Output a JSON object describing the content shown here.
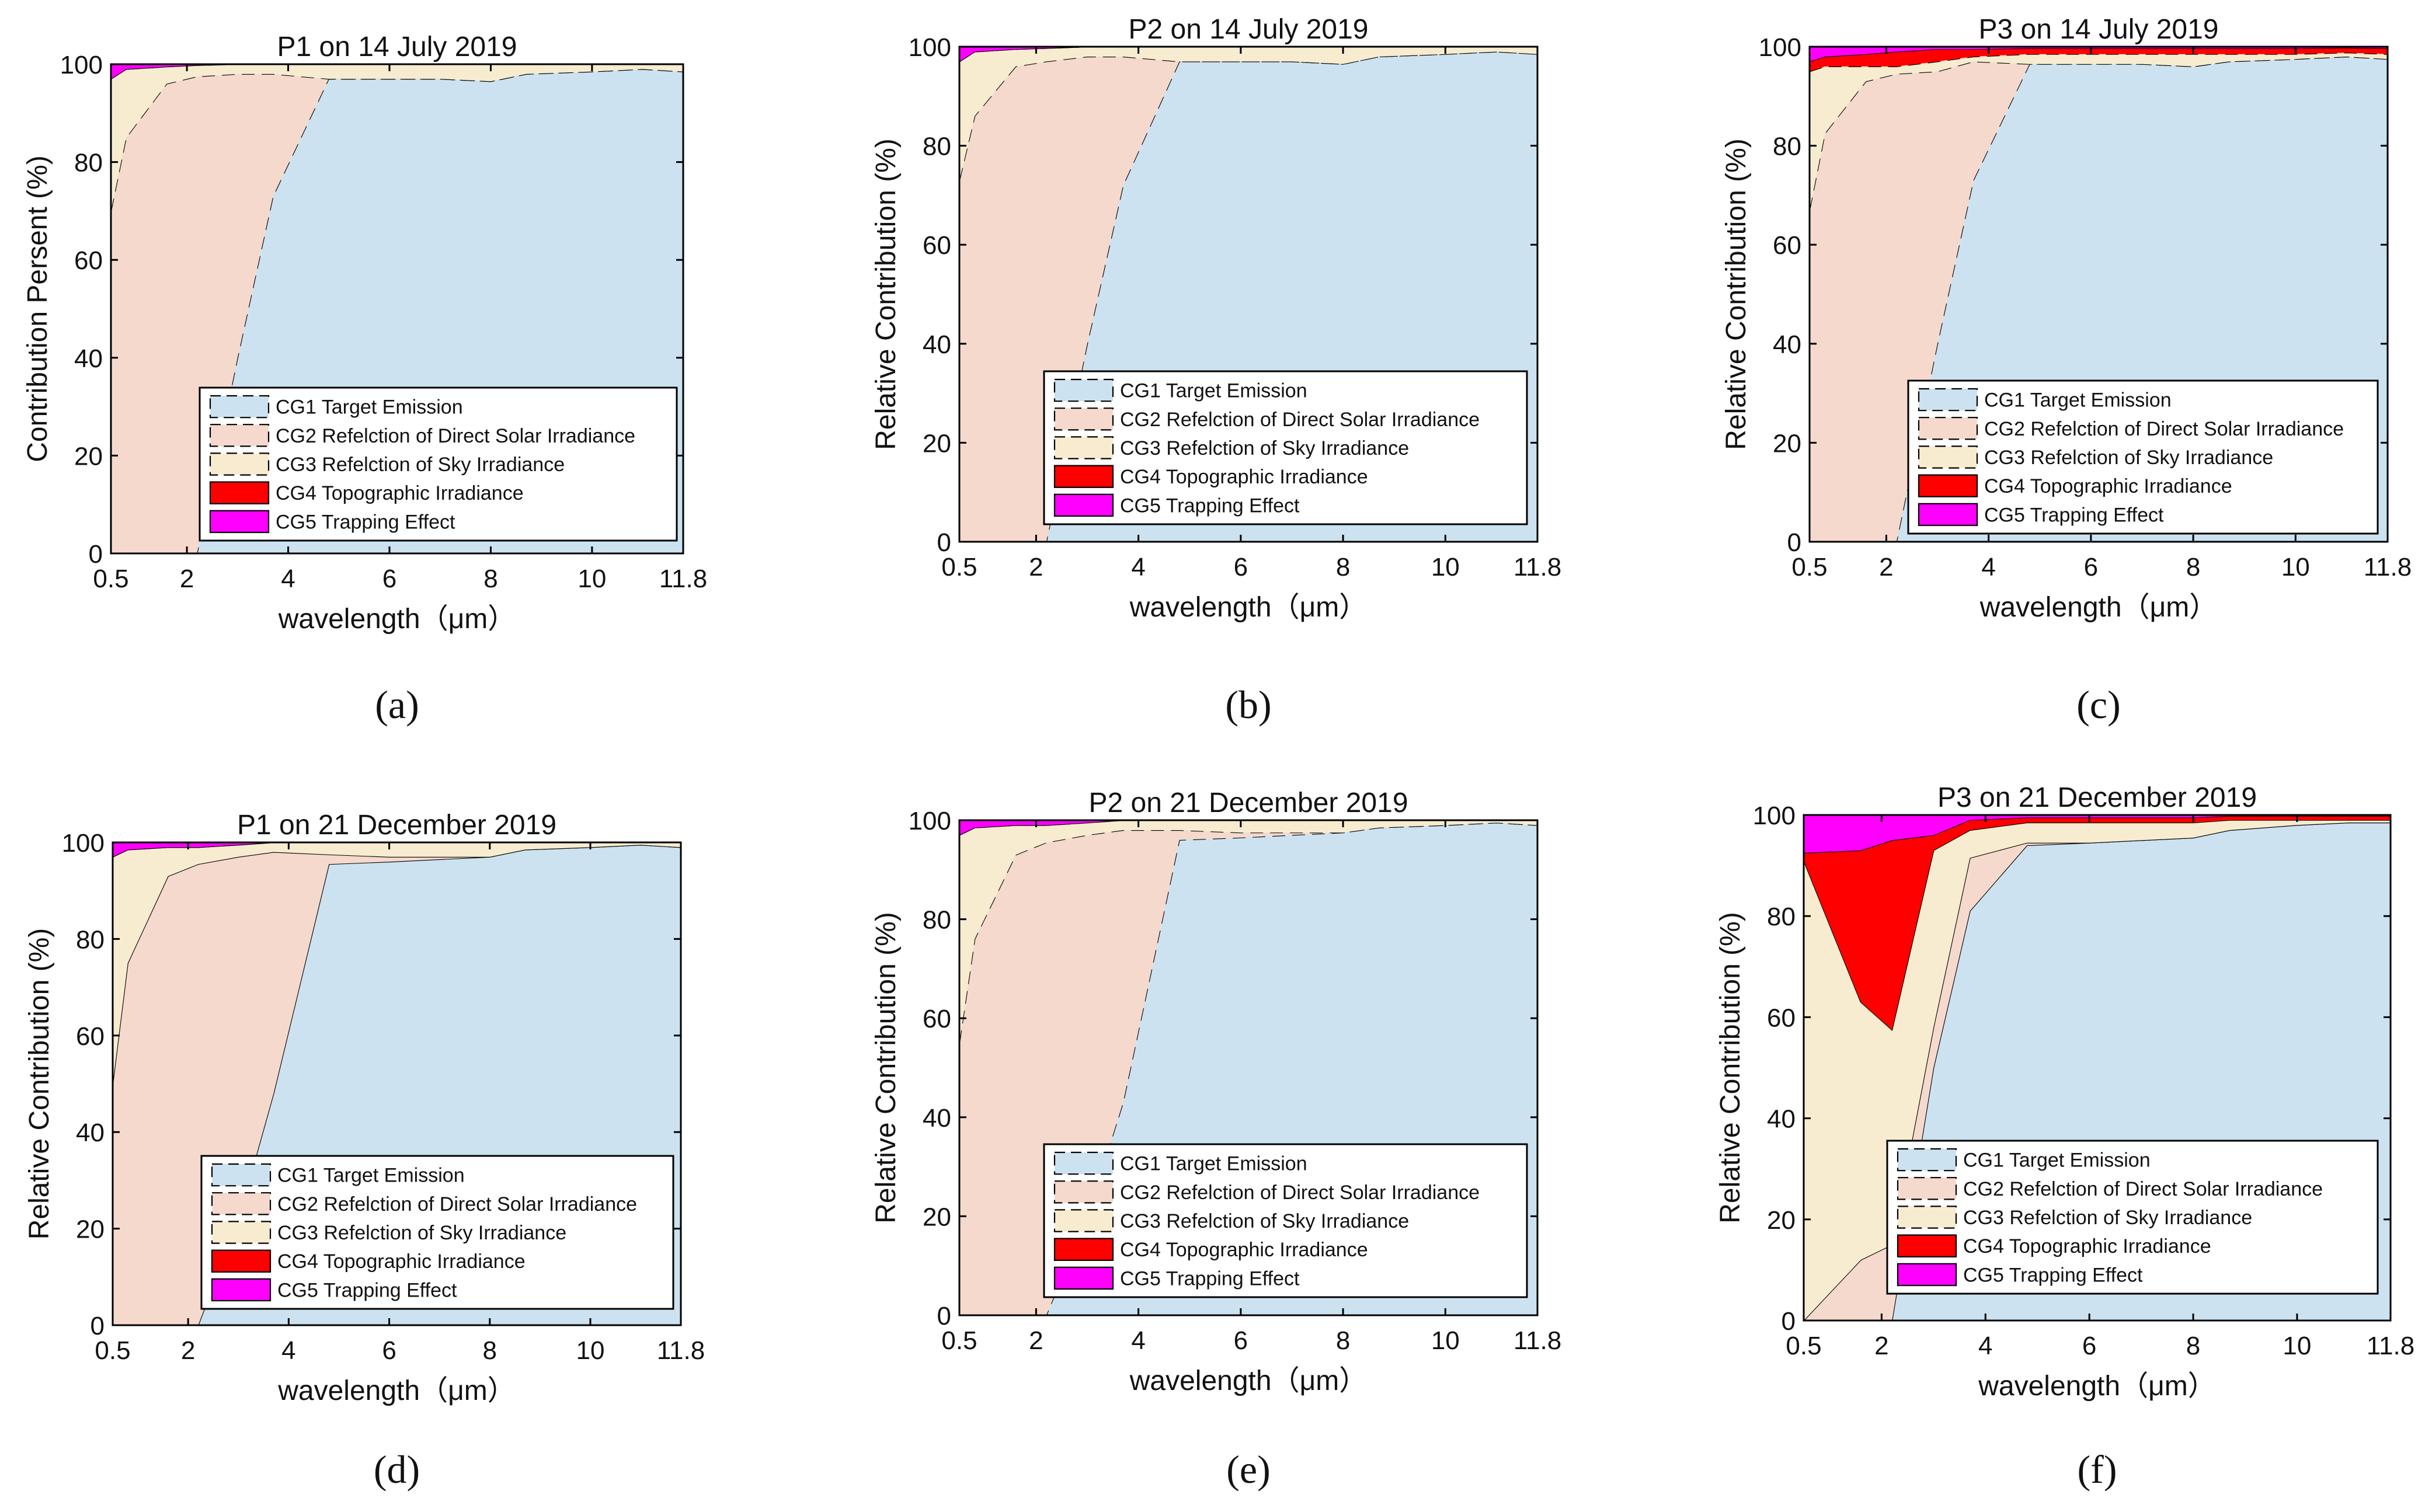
{
  "figure": {
    "legend_entries": [
      "CG1 Target Emission",
      "CG2 Refelction of Direct Solar Irradiance",
      "CG3 Refelction of Sky Irradiance",
      "CG4 Topographic Irradiance",
      "CG5 Trapping Effect"
    ],
    "colors": {
      "CG1": "#cce2f0",
      "CG2": "#f5d9cd",
      "CG3": "#f7eccf",
      "CG4": "#ff0000",
      "CG5": "#ff00ff"
    }
  },
  "chart_data": [
    {
      "type": "area",
      "stacked": true,
      "panel": "(a)",
      "title": "P1 on 14 July 2019",
      "xlabel": "wavelength（μm）",
      "ylabel": "Contribution Persent (%)",
      "xlim": [
        0.5,
        11.8
      ],
      "ylim": [
        0,
        100
      ],
      "xticks": [
        "0.5",
        "2",
        "4",
        "6",
        "8",
        "10",
        "11.8"
      ],
      "yticks": [
        "0",
        "20",
        "40",
        "60",
        "80",
        "100"
      ],
      "legend_position": "bottom-right",
      "x": [
        0.5,
        0.8,
        1.6,
        2.2,
        3.0,
        3.7,
        4.8,
        6.0,
        7.0,
        8.0,
        8.7,
        10.0,
        11.0,
        11.8
      ],
      "series": [
        {
          "name": "CG1 Target Emission",
          "values": [
            0,
            0,
            0,
            0,
            40,
            73,
            97,
            97,
            97,
            96.5,
            98,
            98.5,
            99,
            98.5
          ]
        },
        {
          "name": "CG2 Refelction of Direct Solar Irradiance",
          "values": [
            70,
            85,
            96,
            97.5,
            58,
            25,
            0,
            0,
            0,
            0,
            0,
            0,
            0,
            0
          ]
        },
        {
          "name": "CG3 Refelction of Sky Irradiance",
          "values": [
            27,
            14,
            3.5,
            2.3,
            2,
            2,
            3,
            3,
            3,
            3.5,
            2,
            1.5,
            1,
            1.5
          ]
        },
        {
          "name": "CG4 Topographic Irradiance",
          "values": [
            0,
            0,
            0,
            0,
            0,
            0,
            0,
            0,
            0,
            0,
            0,
            0,
            0,
            0
          ]
        },
        {
          "name": "CG5 Trapping Effect",
          "values": [
            3,
            1,
            0.5,
            0.2,
            0,
            0,
            0,
            0,
            0,
            0,
            0,
            0,
            0,
            0
          ]
        }
      ]
    },
    {
      "type": "area",
      "stacked": true,
      "panel": "(b)",
      "title": "P2 on 14 July 2019",
      "xlabel": "wavelength（μm）",
      "ylabel": "Relative Contribution (%)",
      "xlim": [
        0.5,
        11.8
      ],
      "ylim": [
        0,
        100
      ],
      "xticks": [
        "0.5",
        "2",
        "4",
        "6",
        "8",
        "10",
        "11.8"
      ],
      "yticks": [
        "0",
        "20",
        "40",
        "60",
        "80",
        "100"
      ],
      "legend_position": "bottom-right",
      "x": [
        0.5,
        0.8,
        1.6,
        2.2,
        3.0,
        3.7,
        4.8,
        6.0,
        7.0,
        8.0,
        8.7,
        10.0,
        11.0,
        11.8
      ],
      "series": [
        {
          "name": "CG1 Target Emission",
          "values": [
            0,
            0,
            0,
            0,
            40,
            72,
            97,
            97,
            97,
            96.5,
            98,
            98.5,
            99,
            98.5
          ]
        },
        {
          "name": "CG2 Refelction of Direct Solar Irradiance",
          "values": [
            73,
            86,
            96,
            97,
            58,
            26,
            0,
            0,
            0,
            0,
            0,
            0,
            0,
            0
          ]
        },
        {
          "name": "CG3 Refelction of Sky Irradiance",
          "values": [
            24,
            13,
            3.5,
            2.7,
            2,
            2,
            3,
            3,
            3,
            3.5,
            2,
            1.5,
            1,
            1.5
          ]
        },
        {
          "name": "CG4 Topographic Irradiance",
          "values": [
            0,
            0,
            0,
            0,
            0,
            0,
            0,
            0,
            0,
            0,
            0,
            0,
            0,
            0
          ]
        },
        {
          "name": "CG5 Trapping Effect",
          "values": [
            3,
            1,
            0.5,
            0.3,
            0,
            0,
            0,
            0,
            0,
            0,
            0,
            0,
            0,
            0
          ]
        }
      ]
    },
    {
      "type": "area",
      "stacked": true,
      "panel": "(c)",
      "title": "P3 on 14 July 2019",
      "xlabel": "wavelength（μm）",
      "ylabel": "Relative Contribution (%)",
      "xlim": [
        0.5,
        11.8
      ],
      "ylim": [
        0,
        100
      ],
      "xticks": [
        "0.5",
        "2",
        "4",
        "6",
        "8",
        "10",
        "11.8"
      ],
      "yticks": [
        "0",
        "20",
        "40",
        "60",
        "80",
        "100"
      ],
      "legend_position": "bottom-right",
      "x": [
        0.5,
        0.8,
        1.6,
        2.2,
        3.0,
        3.7,
        4.8,
        6.0,
        7.0,
        8.0,
        8.7,
        10.0,
        11.0,
        11.8
      ],
      "series": [
        {
          "name": "CG1 Target Emission",
          "values": [
            0,
            0,
            0,
            0,
            40,
            73,
            96.5,
            96.5,
            96.5,
            96,
            97,
            97.5,
            98,
            97.5
          ]
        },
        {
          "name": "CG2 Refelction of Direct Solar Irradiance",
          "values": [
            67,
            82.5,
            93,
            94.5,
            55,
            24,
            0,
            0,
            0,
            0,
            0,
            0,
            0,
            0
          ]
        },
        {
          "name": "CG3 Refelction of Sky Irradiance",
          "values": [
            28,
            13.5,
            3,
            1.5,
            2,
            1,
            2,
            2,
            2,
            2.5,
            1.5,
            1,
            0.8,
            1
          ]
        },
        {
          "name": "CG4 Topographic Irradiance",
          "values": [
            2,
            2,
            2.5,
            3,
            2.5,
            1.5,
            1.2,
            1.2,
            1.2,
            1.2,
            1.2,
            1.2,
            1,
            1.2
          ]
        },
        {
          "name": "CG5 Trapping Effect",
          "values": [
            3,
            2,
            1.5,
            1,
            0.5,
            0.5,
            0.3,
            0.3,
            0.3,
            0.3,
            0.3,
            0.3,
            0.2,
            0.3
          ]
        }
      ]
    },
    {
      "type": "area",
      "stacked": true,
      "panel": "(d)",
      "title": "P1 on 21 December 2019",
      "xlabel": "wavelength（μm）",
      "ylabel": "Relative Contribution (%)",
      "xlim": [
        0.5,
        11.8
      ],
      "ylim": [
        0,
        100
      ],
      "xticks": [
        "0.5",
        "2",
        "4",
        "6",
        "8",
        "10",
        "11.8"
      ],
      "yticks": [
        "0",
        "20",
        "40",
        "60",
        "80",
        "100"
      ],
      "legend_position": "bottom-right",
      "x": [
        0.5,
        0.8,
        1.6,
        2.2,
        3.0,
        3.7,
        4.8,
        6.0,
        7.0,
        8.0,
        8.7,
        10.0,
        11.0,
        11.8
      ],
      "series": [
        {
          "name": "CG1 Target Emission",
          "values": [
            0,
            0,
            0,
            0,
            22,
            48,
            95.5,
            96,
            96.5,
            97,
            98.5,
            99,
            99.5,
            99
          ]
        },
        {
          "name": "CG2 Refelction of Direct Solar Irradiance",
          "values": [
            50,
            75,
            93,
            95.5,
            75,
            50,
            2,
            1,
            0.5,
            0,
            0,
            0,
            0,
            0
          ]
        },
        {
          "name": "CG3 Refelction of Sky Irradiance",
          "values": [
            47,
            23.5,
            6,
            3.5,
            2.5,
            2,
            2.5,
            3,
            3,
            3,
            1.5,
            1,
            0.5,
            1
          ]
        },
        {
          "name": "CG4 Topographic Irradiance",
          "values": [
            0,
            0,
            0,
            0,
            0,
            0,
            0,
            0,
            0,
            0,
            0,
            0,
            0,
            0
          ]
        },
        {
          "name": "CG5 Trapping Effect",
          "values": [
            3,
            1.5,
            1,
            1,
            0.5,
            0,
            0,
            0,
            0,
            0,
            0,
            0,
            0,
            0
          ]
        }
      ]
    },
    {
      "type": "area",
      "stacked": true,
      "panel": "(e)",
      "title": "P2 on 21 December 2019",
      "xlabel": "wavelength（μm）",
      "ylabel": "Relative Contribution (%)",
      "xlim": [
        0.5,
        11.8
      ],
      "ylim": [
        0,
        100
      ],
      "xticks": [
        "0.5",
        "2",
        "4",
        "6",
        "8",
        "10",
        "11.8"
      ],
      "yticks": [
        "0",
        "20",
        "40",
        "60",
        "80",
        "100"
      ],
      "legend_position": "bottom-right",
      "x": [
        0.5,
        0.8,
        1.6,
        2.2,
        3.0,
        3.7,
        4.8,
        6.0,
        7.0,
        8.0,
        8.7,
        10.0,
        11.0,
        11.8
      ],
      "series": [
        {
          "name": "CG1 Target Emission",
          "values": [
            0,
            0,
            0,
            0,
            20,
            43,
            96,
            96.5,
            97,
            97.5,
            98.5,
            99,
            99.5,
            99
          ]
        },
        {
          "name": "CG2 Refelction of Direct Solar Irradiance",
          "values": [
            55,
            76,
            93,
            95.5,
            77,
            55,
            2,
            1,
            0.5,
            0,
            0,
            0,
            0,
            0
          ]
        },
        {
          "name": "CG3 Refelction of Sky Irradiance",
          "values": [
            42,
            22.5,
            6,
            3.5,
            2.5,
            2,
            2,
            2.5,
            2.5,
            2.5,
            1.5,
            1,
            0.5,
            1
          ]
        },
        {
          "name": "CG4 Topographic Irradiance",
          "values": [
            0,
            0,
            0,
            0,
            0,
            0,
            0,
            0,
            0,
            0,
            0,
            0,
            0,
            0
          ]
        },
        {
          "name": "CG5 Trapping Effect",
          "values": [
            3,
            1.5,
            1,
            1,
            0.5,
            0,
            0,
            0,
            0,
            0,
            0,
            0,
            0,
            0
          ]
        }
      ]
    },
    {
      "type": "area",
      "stacked": true,
      "panel": "(f)",
      "title": "P3 on 21 December 2019",
      "xlabel": "wavelength（μm）",
      "ylabel": "Relative Contribution (%)",
      "xlim": [
        0.5,
        11.8
      ],
      "ylim": [
        0,
        100
      ],
      "xticks": [
        "0.5",
        "2",
        "4",
        "6",
        "8",
        "10",
        "11.8"
      ],
      "yticks": [
        "0",
        "20",
        "40",
        "60",
        "80",
        "100"
      ],
      "legend_position": "bottom-right",
      "x": [
        0.5,
        1.6,
        2.2,
        3.0,
        3.7,
        4.8,
        6.0,
        7.0,
        8.0,
        8.7,
        10.0,
        11.0,
        11.8
      ],
      "series": [
        {
          "name": "CG1 Target Emission",
          "values": [
            0,
            0,
            0,
            50,
            81,
            94,
            94.5,
            95,
            95.5,
            97,
            98,
            98.5,
            98.5
          ]
        },
        {
          "name": "CG2 Refelction of Direct Solar Irradiance",
          "values": [
            0,
            12,
            15,
            8,
            10.5,
            0.5,
            0,
            0,
            0,
            0,
            0,
            0,
            0
          ]
        },
        {
          "name": "CG3 Refelction of Sky Irradiance",
          "values": [
            91,
            51,
            42.5,
            35,
            5.5,
            4,
            4,
            3.5,
            3,
            2,
            1,
            0.5,
            0.5
          ]
        },
        {
          "name": "CG4 Topographic Irradiance",
          "values": [
            1.5,
            30,
            37.5,
            3,
            2,
            1,
            1,
            1,
            1,
            0.8,
            0.8,
            0.8,
            0.8
          ]
        },
        {
          "name": "CG5 Trapping Effect",
          "values": [
            7.5,
            7,
            5,
            4,
            1,
            0.5,
            0.5,
            0.5,
            0.5,
            0.2,
            0.2,
            0.2,
            0.2
          ]
        }
      ]
    }
  ]
}
